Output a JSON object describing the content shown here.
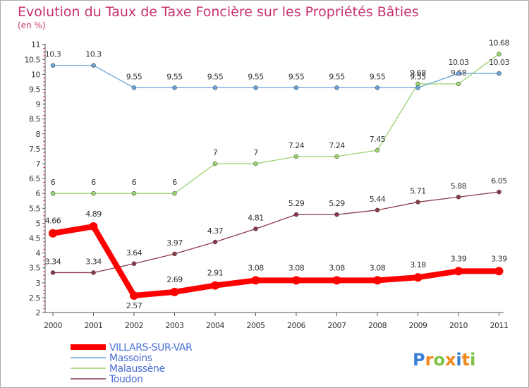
{
  "chart_data": {
    "type": "line",
    "title": "Evolution du Taux de Taxe Foncière sur les Propriétés Bâties",
    "subtitle": "(en %)",
    "categories": [
      "2000",
      "2001",
      "2002",
      "2003",
      "2004",
      "2005",
      "2006",
      "2007",
      "2008",
      "2009",
      "2010",
      "2011"
    ],
    "y_ticks": [
      "2",
      "2.5",
      "3",
      "3.5",
      "4",
      "4.5",
      "5",
      "5.5",
      "6",
      "6.5",
      "7",
      "7.5",
      "8",
      "8.5",
      "9",
      "9.5",
      "10",
      "10.5",
      "11"
    ],
    "ylim": [
      2,
      11
    ],
    "grid": false,
    "legend_position": "bottom-left",
    "series": [
      {
        "name": "VILLARS-SUR-VAR",
        "color": "#ff0000",
        "values": [
          4.66,
          4.89,
          2.57,
          2.69,
          2.91,
          3.08,
          3.08,
          3.08,
          3.08,
          3.18,
          3.39,
          3.39
        ],
        "labels": [
          "4.66",
          "4.89",
          "2.57",
          "2.69",
          "2.91",
          "3.08",
          "3.08",
          "3.08",
          "3.08",
          "3.18",
          "3.39",
          "3.39"
        ]
      },
      {
        "name": "Massoins",
        "color": "#6aa3d8",
        "values": [
          10.3,
          10.3,
          9.55,
          9.55,
          9.55,
          9.55,
          9.55,
          9.55,
          9.55,
          9.55,
          10.03,
          10.03
        ],
        "labels": [
          "10.3",
          "10.3",
          "9.55",
          "9.55",
          "9.55",
          "9.55",
          "9.55",
          "9.55",
          "9.55",
          "9.55",
          "10.03",
          "10.03"
        ]
      },
      {
        "name": "Malaussène",
        "color": "#9bd46f",
        "values": [
          6,
          6,
          6,
          6,
          7,
          7,
          7.24,
          7.24,
          7.45,
          9.68,
          9.68,
          10.68
        ],
        "labels": [
          "6",
          "6",
          "6",
          "6",
          "7",
          "7",
          "7.24",
          "7.24",
          "7.45",
          "9.68",
          "9.68",
          "10.68"
        ]
      },
      {
        "name": "Toudon",
        "color": "#8a3a4a",
        "values": [
          3.34,
          3.34,
          3.64,
          3.97,
          4.37,
          4.81,
          5.29,
          5.29,
          5.44,
          5.71,
          5.88,
          6.05
        ],
        "labels": [
          "3.34",
          "3.34",
          "3.64",
          "3.97",
          "4.37",
          "4.81",
          "5.29",
          "5.29",
          "5.44",
          "5.71",
          "5.88",
          "6.05"
        ]
      }
    ]
  },
  "logo": {
    "letters": [
      "P",
      "r",
      "o",
      "x",
      "i",
      "t",
      "i"
    ],
    "colors": [
      "#3a7fd5",
      "#f08a1c",
      "#7cc243",
      "#f08a1c",
      "#3a7fd5",
      "#f08a1c",
      "#7cc243"
    ]
  }
}
